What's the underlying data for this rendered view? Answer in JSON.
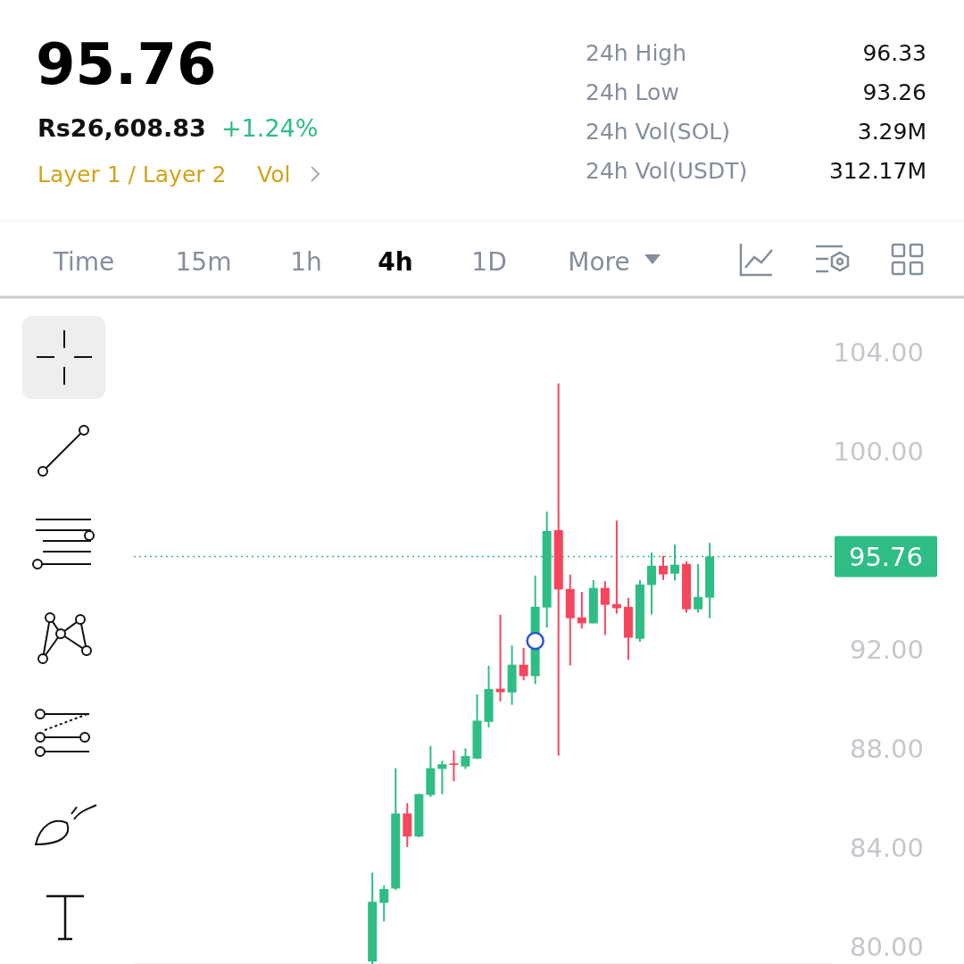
{
  "chart_data": {
    "type": "candlestick",
    "title": "95.76",
    "annotations": [
      "Rs26,608.83",
      "+1.24%",
      "Layer 1 / Layer 2",
      "Vol",
      "24h High",
      "96.33",
      "24h Low",
      "93.26",
      "24h Vol(SOL)",
      "3.29M",
      "24h Vol(USDT)",
      "312.17M",
      "Time",
      "15m",
      "1h",
      "4h",
      "1D",
      "More"
    ],
    "categories": [
      null,
      null,
      null,
      null,
      null,
      null,
      null,
      null,
      null,
      null,
      null,
      null,
      null,
      null,
      null,
      null,
      null,
      null,
      null,
      null,
      null,
      null,
      null,
      null,
      null,
      null,
      null,
      null,
      null,
      null,
      null,
      null,
      null,
      null,
      null,
      null,
      null,
      null,
      null,
      null,
      null,
      null,
      null,
      null,
      null,
      null,
      null,
      null,
      null,
      null,
      null,
      null,
      null,
      null,
      null,
      null,
      null,
      null,
      null,
      null
    ],
    "ohlc": [
      null,
      null,
      null,
      null,
      null,
      null,
      null,
      null,
      null,
      null,
      null,
      null,
      null,
      null,
      null,
      null,
      null,
      null,
      null,
      null,
      [
        79.4,
        82.99,
        79.3,
        81.81
      ],
      [
        81.77,
        82.48,
        81.02,
        82.33
      ],
      [
        82.35,
        87.21,
        82.29,
        85.38
      ],
      [
        85.38,
        85.8,
        84.03,
        84.45
      ],
      [
        84.45,
        86.19,
        84.42,
        86.16
      ],
      [
        86.13,
        88.11,
        86.04,
        87.21
      ],
      [
        87.18,
        87.51,
        86.16,
        87.37
      ],
      [
        87.4,
        87.93,
        86.68,
        87.34
      ],
      [
        87.28,
        88.01,
        87.18,
        87.7
      ],
      [
        87.6,
        90.19,
        87.58,
        89.13
      ],
      [
        89.08,
        91.35,
        88.86,
        90.41
      ],
      [
        90.42,
        93.41,
        89.91,
        90.28
      ],
      [
        90.27,
        92.17,
        89.77,
        91.39
      ],
      [
        91.39,
        92.07,
        90.76,
        90.93
      ],
      [
        90.93,
        94.99,
        90.61,
        93.73
      ],
      [
        93.7,
        97.57,
        92.89,
        96.79
      ],
      [
        96.83,
        102.76,
        87.72,
        94.43
      ],
      [
        94.45,
        95.03,
        91.36,
        93.27
      ],
      [
        93.3,
        94.33,
        92.85,
        93.06
      ],
      [
        93.06,
        94.81,
        93.06,
        94.49
      ],
      [
        94.49,
        94.77,
        92.59,
        93.81
      ],
      [
        93.84,
        97.21,
        93.45,
        93.67
      ],
      [
        93.73,
        94.09,
        91.59,
        92.48
      ],
      [
        92.44,
        94.81,
        92.32,
        94.63
      ],
      [
        94.61,
        95.92,
        93.42,
        95.39
      ],
      [
        95.39,
        95.79,
        94.81,
        95.04
      ],
      [
        95.07,
        96.25,
        94.79,
        95.43
      ],
      [
        95.46,
        95.56,
        93.49,
        93.63
      ],
      [
        93.63,
        95.46,
        93.49,
        94.13
      ],
      [
        94.1,
        96.31,
        93.27,
        95.76
      ],
      null,
      null,
      null,
      null,
      null,
      null,
      null,
      null,
      null,
      null
    ],
    "colors": [
      null,
      null,
      null,
      null,
      null,
      null,
      null,
      null,
      null,
      null,
      null,
      null,
      null,
      null,
      null,
      null,
      null,
      null,
      null,
      null,
      "#2ebd85",
      "#2ebd85",
      "#2ebd85",
      "#f6465d",
      "#2ebd85",
      "#2ebd85",
      "#2ebd85",
      "#f6465d",
      "#2ebd85",
      "#2ebd85",
      "#2ebd85",
      "#f6465d",
      "#2ebd85",
      "#f6465d",
      "#2ebd85",
      "#2ebd85",
      "#f6465d",
      "#f6465d",
      "#f6465d",
      "#2ebd85",
      "#f6465d",
      "#f6465d",
      "#f6465d",
      "#2ebd85",
      "#2ebd85",
      "#f6465d",
      "#2ebd85",
      "#f6465d",
      "#2ebd85",
      "#2ebd85",
      null,
      null,
      null,
      null,
      null,
      null,
      null,
      null,
      null,
      null
    ],
    "ylim": [
      79.3,
      106.2
    ],
    "yticks": [
      {
        "value": 80,
        "label": "80.00"
      },
      {
        "value": 84,
        "label": "84.00"
      },
      {
        "value": 88,
        "label": "88.00"
      },
      {
        "value": 92,
        "label": "92.00"
      },
      {
        "value": 100,
        "label": "100.00"
      },
      {
        "value": 104,
        "label": "104.00"
      }
    ],
    "ref_lines": [
      {
        "axis": "y",
        "value": 95.76,
        "label": "95.76",
        "color": "#2ebd85",
        "line_style": "dotted"
      }
    ]
  }
}
